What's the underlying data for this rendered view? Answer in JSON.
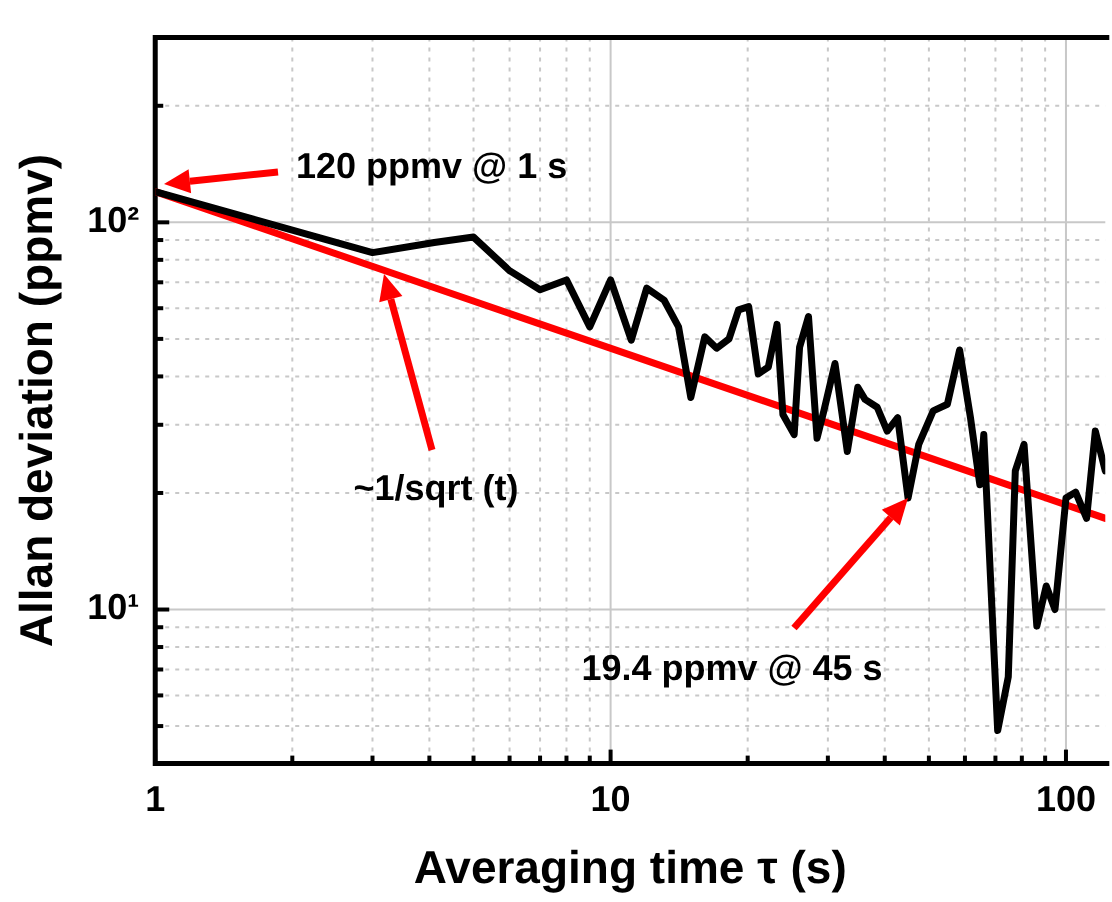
{
  "chart_data": {
    "type": "line",
    "xlabel": "Averaging time τ (s)",
    "ylabel": "Allan deviation (ppmv)",
    "log": "xy",
    "grid": true,
    "legend": false,
    "marker": "none",
    "line_style": "solid",
    "xlim": [
      1,
      122
    ],
    "ylim": [
      4,
      300
    ],
    "xticks": [
      1,
      {
        "value": 2,
        "label": null
      },
      {
        "value": 3,
        "label": null
      },
      {
        "value": 4,
        "label": null
      },
      {
        "value": 5,
        "label": null
      },
      {
        "value": 6,
        "label": null
      },
      {
        "value": 7,
        "label": null
      },
      {
        "value": 8,
        "label": null
      },
      {
        "value": 9,
        "label": null
      },
      10,
      {
        "value": 20,
        "label": null
      },
      {
        "value": 30,
        "label": null
      },
      {
        "value": 40,
        "label": null
      },
      {
        "value": 50,
        "label": null
      },
      {
        "value": 60,
        "label": null
      },
      {
        "value": 70,
        "label": null
      },
      {
        "value": 80,
        "label": null
      },
      {
        "value": 90,
        "label": null
      },
      100
    ],
    "yticks": [
      {
        "value": 5,
        "label": null
      },
      {
        "value": 6,
        "label": null
      },
      {
        "value": 7,
        "label": null
      },
      {
        "value": 8,
        "label": null
      },
      {
        "value": 9,
        "label": null
      },
      {
        "value": 10,
        "label": "10¹"
      },
      {
        "value": 20,
        "label": null
      },
      {
        "value": 30,
        "label": null
      },
      {
        "value": 40,
        "label": null
      },
      {
        "value": 50,
        "label": null
      },
      {
        "value": 60,
        "label": null
      },
      {
        "value": 70,
        "label": null
      },
      {
        "value": 80,
        "label": null
      },
      {
        "value": 90,
        "label": null
      },
      {
        "value": 100,
        "label": "10²"
      },
      {
        "value": 200,
        "label": null
      }
    ],
    "series": [
      {
        "color": "#000000",
        "x": [
          1,
          3.0,
          4.1,
          5.0,
          6.0,
          7.0,
          8.0,
          9.0,
          10,
          11.1,
          12.0,
          13.1,
          14.1,
          15.0,
          16.1,
          17.1,
          18.2,
          19.1,
          20.1,
          21.1,
          22.2,
          23.2,
          23.9,
          25.3,
          26.0,
          27.2,
          28.4,
          29.4,
          31.1,
          33.1,
          34.9,
          36.2,
          38.5,
          40.5,
          42.7,
          45,
          47.5,
          51.1,
          54.9,
          58.4,
          61.7,
          64.7,
          66,
          70.8,
          74.7,
          77.4,
          80.9,
          86.3,
          90.5,
          94.6,
          100,
          105,
          111,
          116,
          122
        ],
        "values": [
          120,
          83.5,
          88.7,
          91.6,
          75,
          67,
          71,
          53.7,
          71,
          49.6,
          67.6,
          63,
          53.7,
          35.3,
          50.6,
          47.3,
          50,
          59.4,
          60.6,
          40.6,
          42.3,
          54.5,
          31.9,
          28.3,
          47.6,
          57.1,
          27.7,
          32.6,
          43.2,
          25.6,
          37.5,
          34.9,
          33.3,
          28.9,
          31.3,
          19.4,
          26.7,
          32.6,
          33.9,
          46.8,
          31.3,
          21,
          28.3,
          4.87,
          6.7,
          22.8,
          26.7,
          9.06,
          11.5,
          10,
          19.4,
          20.1,
          17.2,
          28.9,
          22.8
        ]
      },
      {
        "color": "#ff0000",
        "x": [
          1,
          122
        ],
        "values": [
          120,
          17.2
        ]
      }
    ],
    "annotations": [
      "120 ppmv @ 1 s",
      "~1/sqrt (t)",
      "19.4 ppmv @ 45 s"
    ]
  }
}
